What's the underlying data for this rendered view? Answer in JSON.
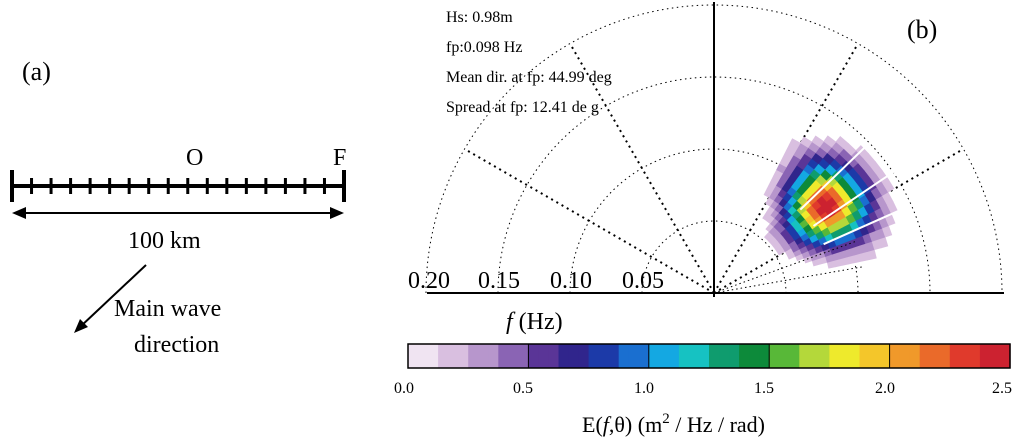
{
  "panel_a": {
    "label": "(a)",
    "point_o": "O",
    "point_f": "F",
    "distance": "100 km",
    "direction_line1": "Main wave",
    "direction_line2": "direction"
  },
  "panel_b": {
    "label": "(b)",
    "stats": {
      "hs": "Hs: 0.98m",
      "fp": "fp:0.098 Hz",
      "mean_dir": "Mean dir. at fp:  44.99 deg",
      "spread": "Spread at fp: 12.41 de g"
    },
    "radial_ticks": [
      "0.20",
      "0.15",
      "0.10",
      "0.05"
    ],
    "axis_label": "(Hz)",
    "axis_symbol": "f"
  },
  "colorbar": {
    "ticks": [
      "0.0",
      "0.5",
      "1.0",
      "1.5",
      "2.0",
      "2.5"
    ],
    "label_prefix": "E(",
    "label_mid": ",θ) (m",
    "label_sup": "2",
    "label_suffix": " / Hz / rad)",
    "label_symbol": "f",
    "min": 0.0,
    "max": 2.5
  },
  "colors": {
    "c_01": "#f0e4f2",
    "c_02": "#d9bfe0",
    "c_03": "#b796cc",
    "c_04": "#8a64b4",
    "c_05": "#5a3597",
    "c_06": "#30258c",
    "c_07": "#1c3aa8",
    "c_08": "#1a6fd0",
    "c_09": "#14a8e2",
    "c_10": "#16c2c2",
    "c_11": "#0f9c6e",
    "c_12": "#0d8a3a",
    "c_13": "#58b838",
    "c_14": "#b4d83a",
    "c_15": "#eeea2c",
    "c_16": "#f4c62a",
    "c_17": "#f0992a",
    "c_18": "#ea6a2a",
    "c_19": "#e03a2c",
    "c_20": "#cc2230"
  },
  "spectrum": {
    "peak_frequency_hz": 0.098,
    "mean_direction_deg": 44.99,
    "spread_deg": 12.41,
    "peak_energy": 2.5
  }
}
